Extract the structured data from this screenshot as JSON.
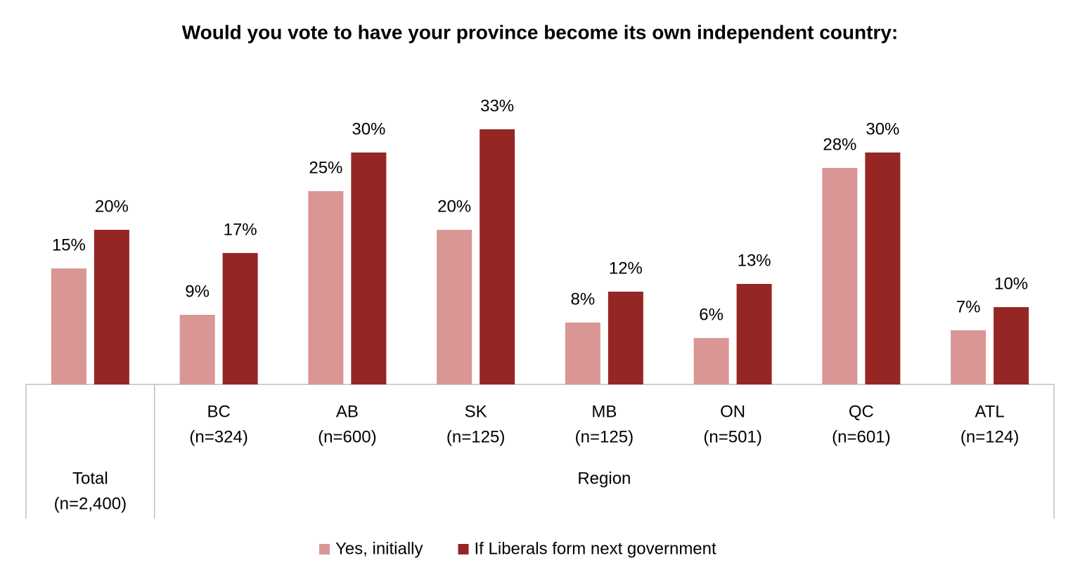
{
  "chart_data": {
    "type": "bar",
    "title": "Would you vote to have your province become its own independent country:",
    "categories": [
      "Total",
      "BC",
      "AB",
      "SK",
      "MB",
      "ON",
      "QC",
      "ATL"
    ],
    "category_notes": [
      "(n=2,400)",
      "(n=324)",
      "(n=600)",
      "(n=125)",
      "(n=125)",
      "(n=501)",
      "(n=601)",
      "(n=124)"
    ],
    "group_label": "Region",
    "series": [
      {
        "name": "Yes, initially",
        "color": "#d99694",
        "values": [
          15,
          9,
          25,
          20,
          8,
          6,
          28,
          7
        ],
        "value_labels": [
          "15%",
          "9%",
          "25%",
          "20%",
          "8%",
          "6%",
          "28%",
          "7%"
        ]
      },
      {
        "name": "If Liberals form next government",
        "color": "#952624",
        "values": [
          20,
          17,
          30,
          33,
          12,
          13,
          30,
          10
        ],
        "value_labels": [
          "20%",
          "17%",
          "30%",
          "33%",
          "12%",
          "13%",
          "30%",
          "10%"
        ]
      }
    ]
  }
}
